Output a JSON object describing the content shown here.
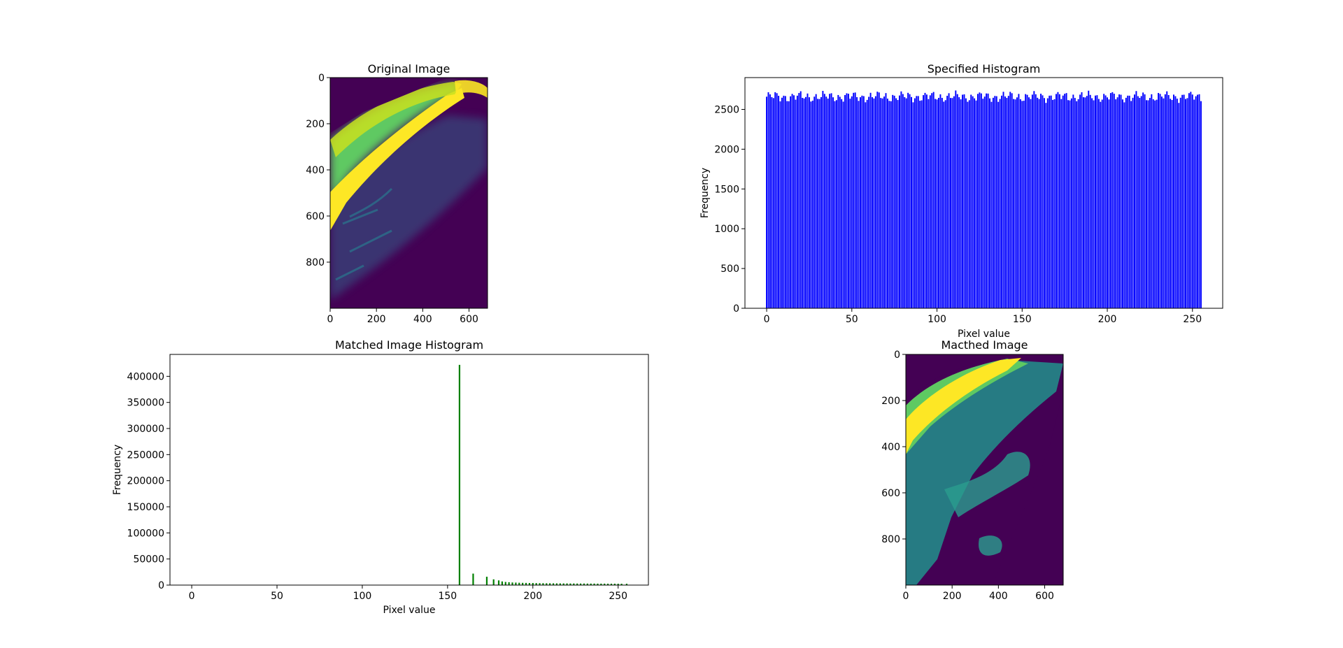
{
  "colors": {
    "specified_bars": "#0000ff",
    "matched_bars": "#008000",
    "viridis_dark": "#440154",
    "viridis_teal": "#21918c",
    "viridis_green": "#5ec962",
    "viridis_yellow": "#fde725"
  },
  "chart_data": [
    {
      "type": "image",
      "title": "Original Image",
      "image_size": [
        680,
        1000
      ],
      "xlim": [
        0,
        680
      ],
      "ylim": [
        1000,
        0
      ],
      "xticks": [
        0,
        200,
        400,
        600
      ],
      "yticks": [
        0,
        200,
        400,
        600,
        800
      ],
      "colormap": "viridis"
    },
    {
      "type": "bar",
      "title": "Specified Histogram",
      "xlabel": "Pixel value",
      "ylabel": "Frequency",
      "xlim": [
        -12.75,
        267.75
      ],
      "ylim": [
        0,
        2900
      ],
      "xticks": [
        0,
        50,
        100,
        150,
        200,
        250
      ],
      "yticks": [
        0,
        500,
        1000,
        1500,
        2000,
        2500
      ],
      "bins_start": 0,
      "bin_width": 1,
      "values_base": 2660,
      "values_amplitude": 80,
      "bin_count": 256
    },
    {
      "type": "bar",
      "title": "Matched Image Histogram",
      "xlabel": "Pixel value",
      "ylabel": "Frequency",
      "xlim": [
        -12.75,
        267.75
      ],
      "ylim": [
        0,
        442000
      ],
      "xticks": [
        0,
        50,
        100,
        150,
        200,
        250
      ],
      "yticks": [
        0,
        50000,
        100000,
        150000,
        200000,
        250000,
        300000,
        350000,
        400000
      ],
      "bars": [
        {
          "x": 157,
          "value": 422000
        },
        {
          "x": 165,
          "value": 22000
        },
        {
          "x": 173,
          "value": 16000
        },
        {
          "x": 177,
          "value": 11000
        },
        {
          "x": 180,
          "value": 9000
        },
        {
          "x": 182,
          "value": 7000
        },
        {
          "x": 184,
          "value": 6000
        },
        {
          "x": 186,
          "value": 5500
        },
        {
          "x": 188,
          "value": 5000
        },
        {
          "x": 190,
          "value": 4800
        },
        {
          "x": 192,
          "value": 4500
        },
        {
          "x": 194,
          "value": 4300
        },
        {
          "x": 196,
          "value": 4200
        },
        {
          "x": 198,
          "value": 4000
        },
        {
          "x": 200,
          "value": 4000
        },
        {
          "x": 202,
          "value": 3800
        },
        {
          "x": 204,
          "value": 3700
        },
        {
          "x": 206,
          "value": 3600
        },
        {
          "x": 208,
          "value": 3500
        },
        {
          "x": 210,
          "value": 3500
        },
        {
          "x": 212,
          "value": 3400
        },
        {
          "x": 214,
          "value": 3300
        },
        {
          "x": 216,
          "value": 3300
        },
        {
          "x": 218,
          "value": 3200
        },
        {
          "x": 220,
          "value": 3200
        },
        {
          "x": 222,
          "value": 3100
        },
        {
          "x": 224,
          "value": 3100
        },
        {
          "x": 226,
          "value": 3000
        },
        {
          "x": 228,
          "value": 3000
        },
        {
          "x": 230,
          "value": 3000
        },
        {
          "x": 232,
          "value": 2900
        },
        {
          "x": 234,
          "value": 2900
        },
        {
          "x": 236,
          "value": 2900
        },
        {
          "x": 238,
          "value": 2800
        },
        {
          "x": 240,
          "value": 2800
        },
        {
          "x": 242,
          "value": 2800
        },
        {
          "x": 244,
          "value": 2700
        },
        {
          "x": 246,
          "value": 2700
        },
        {
          "x": 248,
          "value": 2700
        },
        {
          "x": 250,
          "value": 2600
        },
        {
          "x": 252,
          "value": 2600
        },
        {
          "x": 255,
          "value": 2600
        }
      ]
    },
    {
      "type": "image",
      "title": "Macthed Image",
      "image_size": [
        680,
        1000
      ],
      "xlim": [
        0,
        680
      ],
      "ylim": [
        1000,
        0
      ],
      "xticks": [
        0,
        200,
        400,
        600
      ],
      "yticks": [
        0,
        200,
        400,
        600,
        800
      ],
      "colormap": "viridis"
    }
  ]
}
